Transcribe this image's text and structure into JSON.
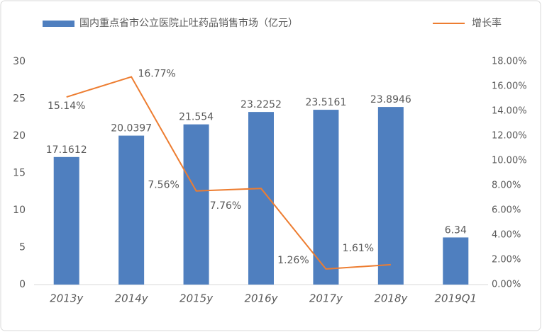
{
  "chart_data": {
    "type": "bar",
    "categories": [
      "2013y",
      "2014y",
      "2015y",
      "2016y",
      "2017y",
      "2018y",
      "2019Q1"
    ],
    "series": [
      {
        "name": "国内重点省市公立医院止吐药品销售市场（亿元）",
        "type": "bar",
        "color": "#4f7fbf",
        "values": [
          17.1612,
          20.0397,
          21.554,
          23.2252,
          23.5161,
          23.8946,
          6.34
        ]
      },
      {
        "name": "增长率",
        "type": "line",
        "axis": "y2",
        "color": "#ed7d31",
        "values": [
          15.14,
          16.77,
          7.56,
          7.76,
          1.26,
          1.61,
          null
        ],
        "value_labels": [
          "15.14%",
          "16.77%",
          "7.56%",
          "7.76%",
          "1.26%",
          "1.61%",
          null
        ]
      }
    ],
    "ylim": [
      0,
      30
    ],
    "yticks": [
      0,
      5,
      10,
      15,
      20,
      25,
      30
    ],
    "y2lim": [
      0,
      18
    ],
    "y2ticks": [
      {
        "value": 0,
        "label": "0.00%"
      },
      {
        "value": 2,
        "label": "2.00%"
      },
      {
        "value": 4,
        "label": "4.00%"
      },
      {
        "value": 6,
        "label": "6.00%"
      },
      {
        "value": 8,
        "label": "8.00%"
      },
      {
        "value": 10,
        "label": "10.00%"
      },
      {
        "value": 12,
        "label": "12.00%"
      },
      {
        "value": 14,
        "label": "14.00%"
      },
      {
        "value": 16,
        "label": "16.00%"
      },
      {
        "value": 18,
        "label": "18.00%"
      }
    ],
    "legend": "top"
  }
}
